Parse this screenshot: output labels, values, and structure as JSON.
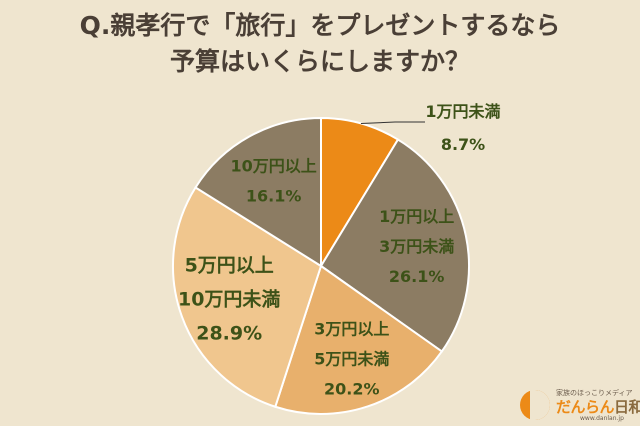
{
  "title_lines": [
    "Q.親孝行で「旅行」をプレゼントするなら",
    "予算はいくらにしますか？"
  ],
  "chart_data": {
    "type": "pie",
    "title": "Q.親孝行で「旅行」をプレゼントするなら予算はいくらにしますか？",
    "slices": [
      {
        "label": [
          "1万円未満"
        ],
        "value": 8.7,
        "value_label": "8.7%",
        "color": "#ec8a17"
      },
      {
        "label": [
          "1万円以上",
          "3万円未満"
        ],
        "value": 26.1,
        "value_label": "26.1%",
        "color": "#8c7c63"
      },
      {
        "label": [
          "3万円以上",
          "5万円未満"
        ],
        "value": 20.2,
        "value_label": "20.2%",
        "color": "#e8b06c"
      },
      {
        "label": [
          "5万円以上",
          "10万円未満"
        ],
        "value": 28.9,
        "value_label": "28.9%",
        "color": "#f0c68e"
      },
      {
        "label": [
          "10万円以上"
        ],
        "value": 16.1,
        "value_label": "16.1%",
        "color": "#8c7c63"
      }
    ]
  },
  "logo": {
    "tagline": "家族のほっこりメディア",
    "brand_part1": "だんらん",
    "brand_part2": "日和",
    "url": "www.danlan.jp"
  }
}
